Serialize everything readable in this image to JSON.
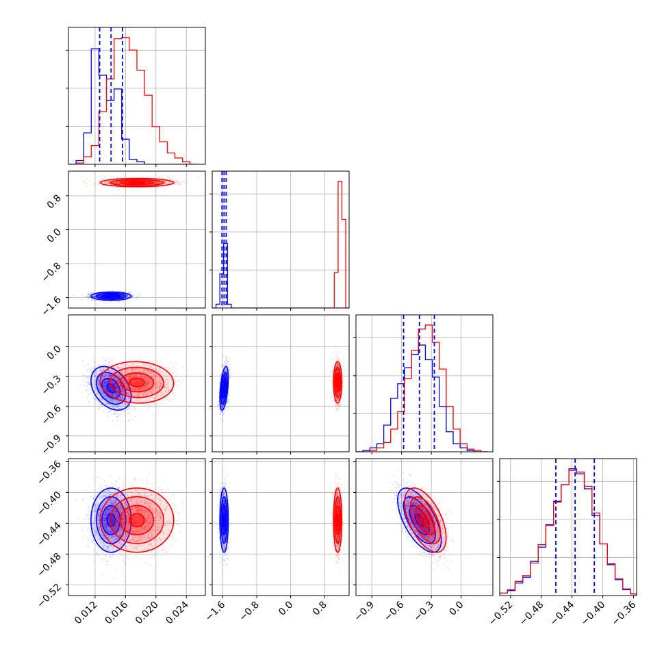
{
  "chart_data": {
    "type": "corner",
    "grid": true,
    "series": [
      {
        "color": "#0000ff"
      },
      {
        "color": "#ff0000"
      }
    ],
    "parameters": [
      {
        "range": [
          0.0085,
          0.0265
        ],
        "ticks": [
          0.012,
          0.016,
          0.02,
          0.024
        ],
        "tick_labels": [
          "0.012",
          "0.016",
          "0.020",
          "0.024"
        ],
        "quantiles": [
          0.0126,
          0.0141,
          0.0156
        ]
      },
      {
        "range": [
          -1.85,
          1.38
        ],
        "ticks": [
          -1.6,
          -0.8,
          0.0,
          0.8
        ],
        "tick_labels": [
          "−1.6",
          "−0.8",
          "0.0",
          "0.8"
        ],
        "quantiles": [
          -1.62,
          -1.57,
          -1.52
        ]
      },
      {
        "range": [
          -1.06,
          0.32
        ],
        "ticks": [
          -0.9,
          -0.6,
          -0.3,
          0.0
        ],
        "tick_labels": [
          "−0.9",
          "−0.6",
          "−0.3",
          "0.0"
        ],
        "quantiles": [
          -0.58,
          -0.42,
          -0.27
        ]
      },
      {
        "range": [
          -0.534,
          -0.356
        ],
        "ticks": [
          -0.52,
          -0.48,
          -0.44,
          -0.4,
          -0.36
        ],
        "tick_labels": [
          "−0.52",
          "−0.48",
          "−0.44",
          "−0.40",
          "−0.36"
        ],
        "quantiles": [
          -0.461,
          -0.436,
          -0.411
        ]
      }
    ],
    "histograms": [
      {
        "edges": [
          0.0085,
          0.0095,
          0.0105,
          0.0115,
          0.0125,
          0.0135,
          0.0145,
          0.0155,
          0.0165,
          0.0175,
          0.0185,
          0.0195,
          0.0205,
          0.0215,
          0.0225,
          0.0235,
          0.0245,
          0.0255
        ],
        "counts": [
          [
            0,
            3,
            25,
            92,
            71,
            51,
            60,
            20,
            4,
            2,
            0,
            0,
            0,
            0,
            0,
            0,
            0
          ],
          [
            0,
            1,
            6,
            15,
            42,
            68,
            100,
            101,
            91,
            75,
            55,
            30,
            18,
            9,
            5,
            2,
            0
          ]
        ]
      },
      {
        "edges": [
          -1.85,
          -1.76,
          -1.67,
          -1.58,
          -1.49,
          -1.4,
          -1.31,
          -1.22,
          -1.13,
          0.94,
          1.03,
          1.12,
          1.21,
          1.3,
          1.38
        ],
        "counts": [
          [
            0,
            3,
            27,
            51,
            3,
            0,
            0,
            0,
            0,
            0,
            0,
            0,
            0,
            0
          ],
          [
            0,
            0,
            0,
            0,
            0,
            0,
            0,
            0,
            0,
            0,
            28,
            100,
            70,
            0
          ]
        ]
      },
      {
        "edges": [
          -1.06,
          -0.99,
          -0.92,
          -0.85,
          -0.78,
          -0.71,
          -0.64,
          -0.57,
          -0.5,
          -0.43,
          -0.36,
          -0.29,
          -0.22,
          -0.15,
          -0.08,
          -0.01,
          0.06,
          0.13,
          0.2,
          0.27
        ],
        "counts": [
          [
            0,
            1,
            3,
            6,
            20,
            40,
            51,
            63,
            73,
            80,
            69,
            56,
            34,
            15,
            6,
            3,
            1,
            0,
            0
          ],
          [
            0,
            0,
            1,
            3,
            7,
            17,
            30,
            55,
            76,
            92,
            95,
            82,
            62,
            34,
            17,
            6,
            2,
            1,
            0
          ]
        ]
      },
      {
        "edges": [
          -0.534,
          -0.524,
          -0.514,
          -0.504,
          -0.494,
          -0.484,
          -0.474,
          -0.464,
          -0.454,
          -0.444,
          -0.434,
          -0.424,
          -0.414,
          -0.404,
          -0.394,
          -0.384,
          -0.374,
          -0.364,
          -0.356
        ],
        "counts": [
          [
            3,
            6,
            15,
            22,
            41,
            58,
            85,
            113,
            133,
            152,
            146,
            128,
            96,
            62,
            37,
            19,
            7,
            2
          ],
          [
            3,
            7,
            17,
            24,
            39,
            61,
            84,
            112,
            133,
            150,
            148,
            131,
            99,
            62,
            38,
            20,
            8,
            2
          ]
        ]
      }
    ],
    "clusters": [
      {
        "center": [
          0.0141,
          -1.57,
          -0.42,
          -0.436
        ],
        "sigma": [
          0.0012,
          0.045,
          0.1,
          0.019
        ],
        "corr": {
          "0-1": 0.0,
          "0-2": -0.35,
          "0-3": 0.0,
          "1-2": 0.45,
          "1-3": 0.0,
          "2-3": -0.62
        }
      },
      {
        "center": [
          0.0175,
          1.11,
          -0.36,
          -0.436
        ],
        "sigma": [
          0.0022,
          0.045,
          0.095,
          0.019
        ],
        "corr": {
          "0-1": 0.0,
          "0-2": -0.05,
          "0-3": 0.0,
          "1-2": 0.0,
          "1-3": 0.0,
          "2-3": -0.55
        }
      }
    ]
  }
}
